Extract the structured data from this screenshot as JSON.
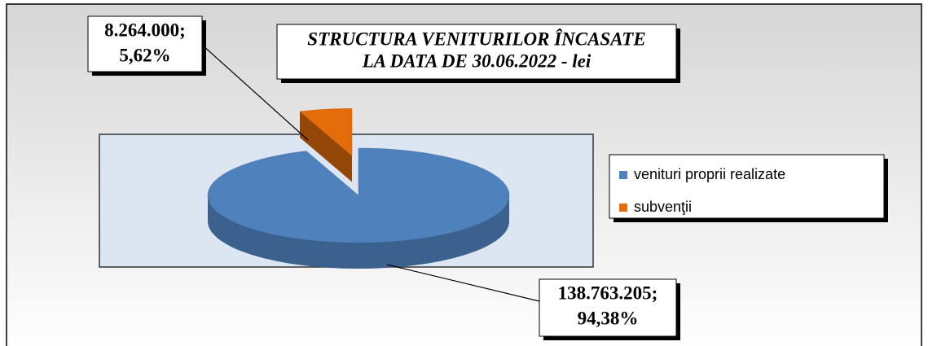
{
  "chart_data": {
    "type": "pie",
    "title": [
      "STRUCTURA VENITURILOR ÎNCASATE",
      "LA DATA DE  30.06.2022 - lei"
    ],
    "categories": [
      "venituri proprii realizate",
      "subvenţii"
    ],
    "values": [
      138763205,
      8264000
    ],
    "value_labels": [
      "138.763.205;",
      "8.264.000;"
    ],
    "percent_labels": [
      "94,38%",
      "5,62%"
    ],
    "colors": [
      "#4f81bd",
      "#e46c0a"
    ],
    "legend": "right"
  }
}
